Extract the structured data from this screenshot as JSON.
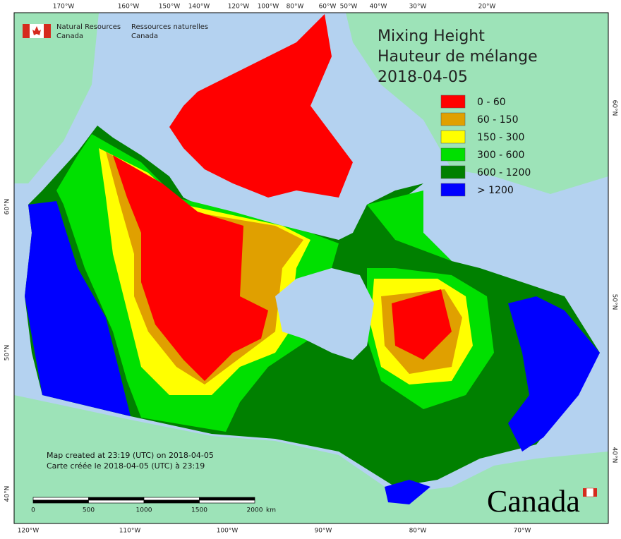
{
  "header": {
    "org_en": "Natural Resources",
    "org_en_2": "Canada",
    "org_fr": "Ressources naturelles",
    "org_fr_2": "Canada"
  },
  "title": {
    "line1": "Mixing Height",
    "line2": "Hauteur de mélange",
    "date": "2018-04-05"
  },
  "legend": [
    {
      "label": "0 - 60",
      "color": "#ff0000"
    },
    {
      "label": "60 - 150",
      "color": "#e0a000"
    },
    {
      "label": "150 - 300",
      "color": "#ffff00"
    },
    {
      "label": "300 - 600",
      "color": "#00e000"
    },
    {
      "label": "600 - 1200",
      "color": "#008000"
    },
    {
      "label": "> 1200",
      "color": "#0000ff"
    }
  ],
  "graticule": {
    "top": [
      "170°W",
      "160°W",
      "150°W",
      "140°W",
      "120°W",
      "100°W",
      "80°W",
      "60°W",
      "50°W",
      "40°W",
      "30°W",
      "20°W"
    ],
    "bottom": [
      "120°W",
      "110°W",
      "100°W",
      "90°W",
      "80°W",
      "70°W"
    ],
    "left": [
      "60°N",
      "50°N",
      "40°N"
    ],
    "right": [
      "60°N",
      "50°N",
      "40°N"
    ]
  },
  "footer": {
    "created_en": "Map created at 23:19 (UTC) on 2018-04-05",
    "created_fr": "Carte créée le 2018-04-05 (UTC) à 23:19"
  },
  "scale_bar": {
    "labels": [
      "0",
      "500",
      "1000",
      "1500",
      "2000"
    ],
    "unit": "km"
  },
  "wordmark": "Canada"
}
